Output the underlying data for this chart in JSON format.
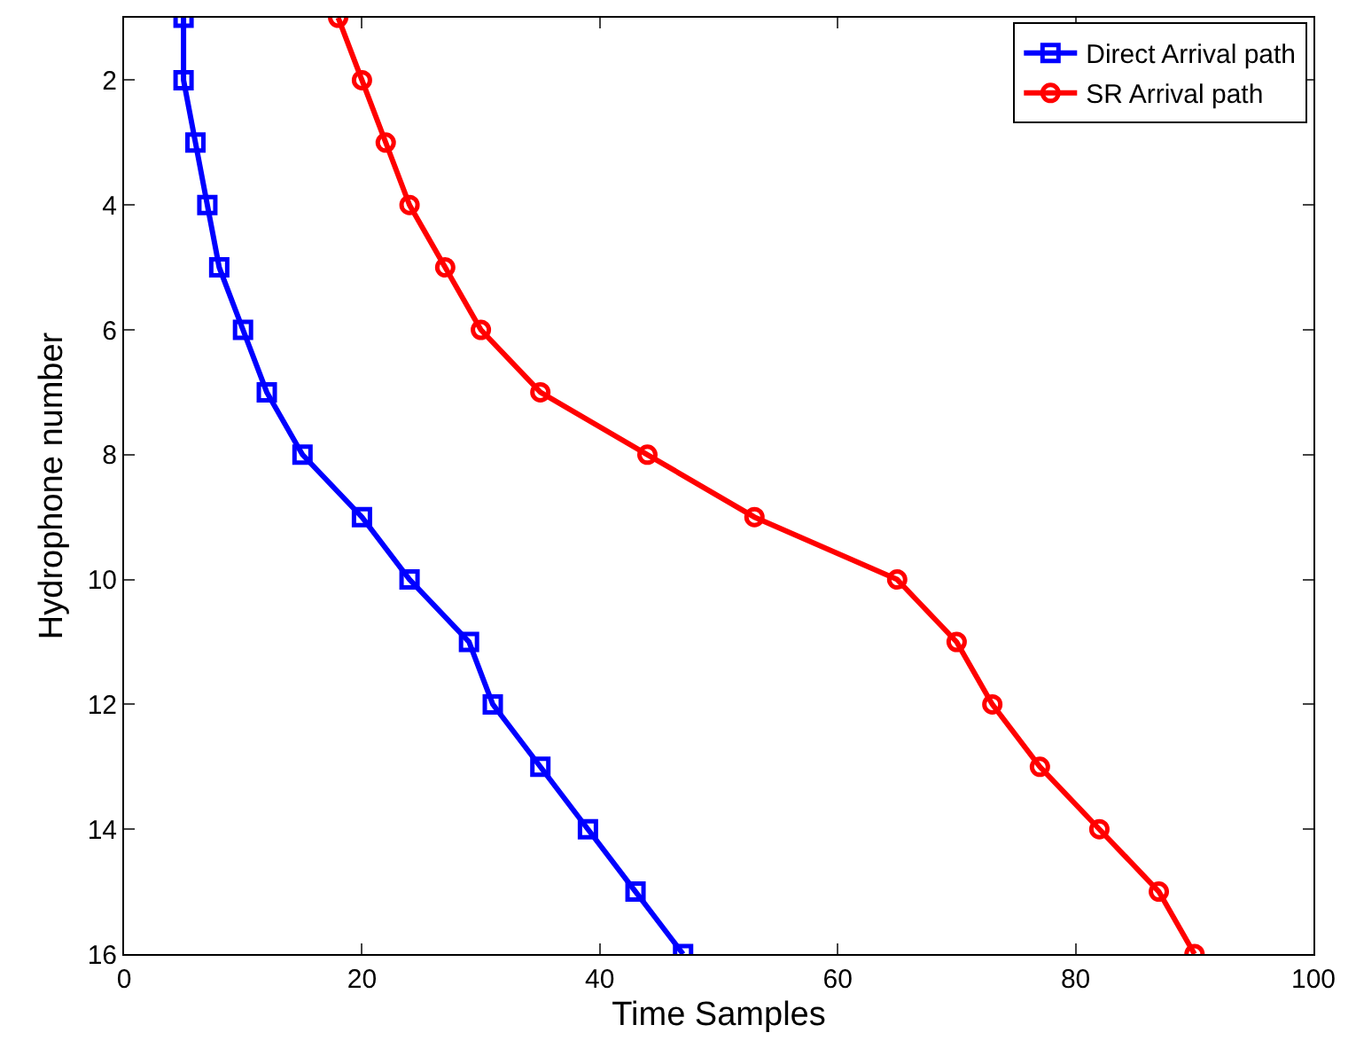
{
  "chart_data": {
    "type": "line",
    "xlabel": "Time Samples",
    "ylabel": "Hydrophone number",
    "series": [
      {
        "name": "Direct Arrival path",
        "color": "#0000ff",
        "marker": "square",
        "x": [
          5,
          5,
          6,
          7,
          8,
          10,
          12,
          15,
          20,
          24,
          29,
          31,
          35,
          39,
          43,
          47
        ],
        "values": [
          1,
          2,
          3,
          4,
          5,
          6,
          7,
          8,
          9,
          10,
          11,
          12,
          13,
          14,
          15,
          16
        ]
      },
      {
        "name": "SR Arrival path",
        "color": "#ff0000",
        "marker": "circle",
        "x": [
          18,
          20,
          22,
          24,
          27,
          30,
          35,
          44,
          53,
          65,
          70,
          73,
          77,
          82,
          87,
          90
        ],
        "values": [
          1,
          2,
          3,
          4,
          5,
          6,
          7,
          8,
          9,
          10,
          11,
          12,
          13,
          14,
          15,
          16
        ]
      }
    ],
    "xlim": [
      0,
      100
    ],
    "xticks": [
      0,
      20,
      40,
      60,
      80,
      100
    ],
    "ylim": [
      16,
      1
    ],
    "yticks": [
      2,
      4,
      6,
      8,
      10,
      12,
      14,
      16
    ],
    "legend": "top right",
    "line_style": "solid"
  }
}
